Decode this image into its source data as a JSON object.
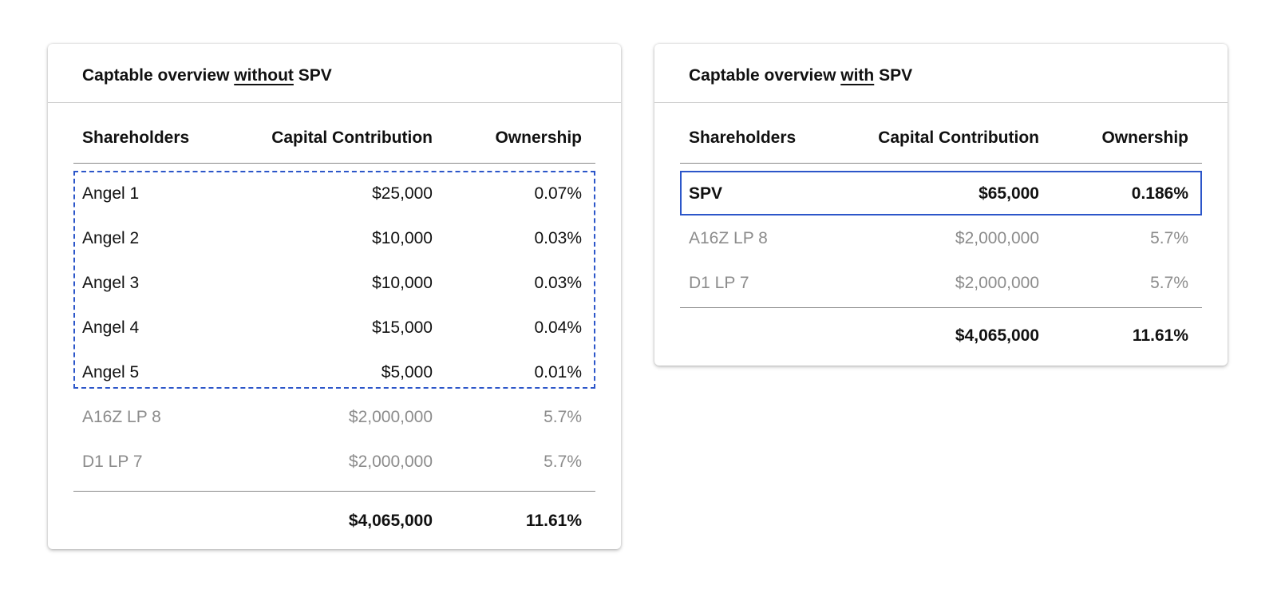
{
  "colors": {
    "highlight": "#2c56c9",
    "dim_text": "#8c8c8c"
  },
  "left_card": {
    "title_prefix": "Captable overview ",
    "title_emphasis": "without",
    "title_suffix": " SPV",
    "columns": [
      "Shareholders",
      "Capital Contribution",
      "Ownership"
    ],
    "rows": [
      {
        "name": "Angel 1",
        "contribution": "$25,000",
        "ownership": "0.07%"
      },
      {
        "name": "Angel 2",
        "contribution": "$10,000",
        "ownership": "0.03%"
      },
      {
        "name": "Angel 3",
        "contribution": "$10,000",
        "ownership": "0.03%"
      },
      {
        "name": "Angel 4",
        "contribution": "$15,000",
        "ownership": "0.04%"
      },
      {
        "name": "Angel 5",
        "contribution": "$5,000",
        "ownership": "0.01%"
      },
      {
        "name": "A16Z LP 8",
        "contribution": "$2,000,000",
        "ownership": "5.7%"
      },
      {
        "name": "D1 LP 7",
        "contribution": "$2,000,000",
        "ownership": "5.7%"
      }
    ],
    "total": {
      "contribution": "$4,065,000",
      "ownership": "11.61%"
    }
  },
  "right_card": {
    "title_prefix": "Captable overview ",
    "title_emphasis": "with",
    "title_suffix": " SPV",
    "columns": [
      "Shareholders",
      "Capital Contribution",
      "Ownership"
    ],
    "rows": [
      {
        "name": "SPV",
        "contribution": "$65,000",
        "ownership": "0.186%"
      },
      {
        "name": "A16Z LP 8",
        "contribution": "$2,000,000",
        "ownership": "5.7%"
      },
      {
        "name": "D1 LP 7",
        "contribution": "$2,000,000",
        "ownership": "5.7%"
      }
    ],
    "total": {
      "contribution": "$4,065,000",
      "ownership": "11.61%"
    }
  }
}
